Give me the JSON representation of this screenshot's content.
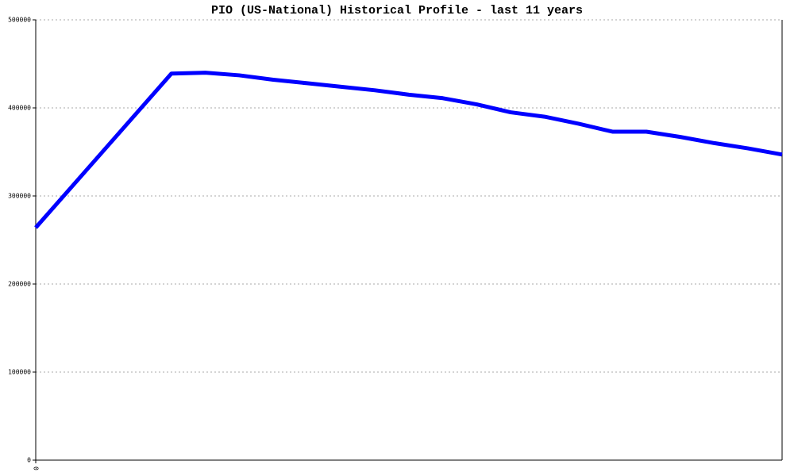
{
  "chart_data": {
    "type": "line",
    "title": "PIO (US-National) Historical Profile - last 11 years",
    "x": [
      0,
      2,
      2.5,
      3,
      3.5,
      4,
      4.5,
      5,
      5.5,
      6,
      6.5,
      7,
      7.5,
      8,
      8.5,
      9,
      9.5,
      10,
      10.5,
      11
    ],
    "series": [
      {
        "color": "#0000ff",
        "values": [
          264000,
          439000,
          440000,
          437000,
          432000,
          428000,
          424000,
          420000,
          415000,
          411000,
          404000,
          395000,
          390000,
          382000,
          373000,
          373000,
          367000,
          360000,
          354000,
          347000
        ]
      }
    ],
    "xlim": [
      0,
      11
    ],
    "xticks": [
      0
    ],
    "ylim": [
      0,
      500000
    ],
    "yticks": [
      0,
      100000,
      200000,
      300000,
      400000,
      500000
    ],
    "grid": true
  }
}
